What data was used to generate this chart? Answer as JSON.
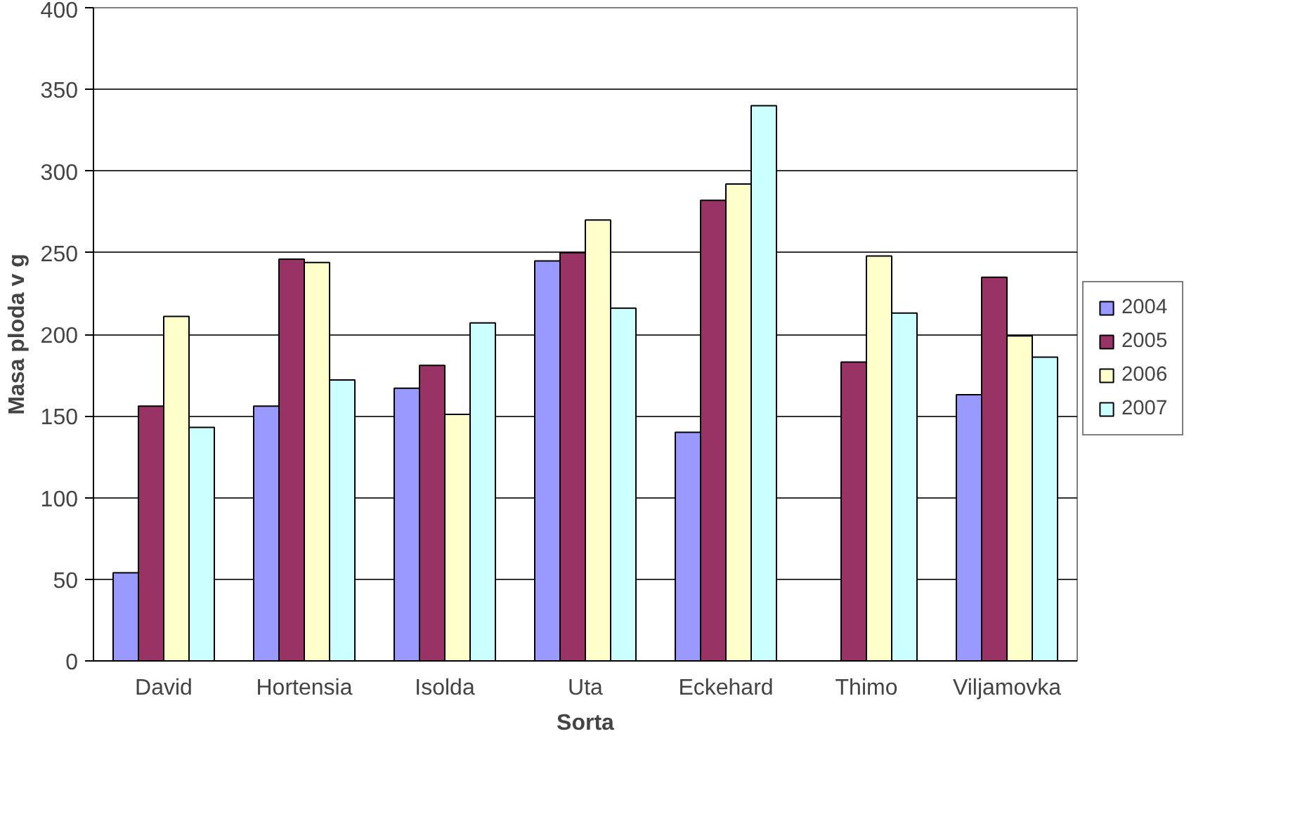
{
  "chart_data": {
    "type": "bar",
    "xlabel": "Sorta",
    "ylabel": "Masa ploda v g",
    "categories": [
      "David",
      "Hortensia",
      "Isolda",
      "Uta",
      "Eckehard",
      "Thimo",
      "Viljamovka"
    ],
    "series": [
      {
        "name": "2004",
        "color": "#9999ff",
        "values": [
          54,
          156,
          167,
          245,
          140,
          null,
          163
        ]
      },
      {
        "name": "2005",
        "color": "#993366",
        "values": [
          156,
          246,
          181,
          250,
          282,
          183,
          235
        ]
      },
      {
        "name": "2006",
        "color": "#ffffcc",
        "values": [
          211,
          244,
          151,
          270,
          292,
          248,
          199
        ]
      },
      {
        "name": "2007",
        "color": "#ccffff",
        "values": [
          143,
          172,
          207,
          216,
          340,
          213,
          186
        ]
      }
    ],
    "ylim": [
      0,
      400
    ],
    "yticks": [
      0,
      50,
      100,
      150,
      200,
      250,
      300,
      350,
      400
    ],
    "grid": "y",
    "legend": "right"
  }
}
